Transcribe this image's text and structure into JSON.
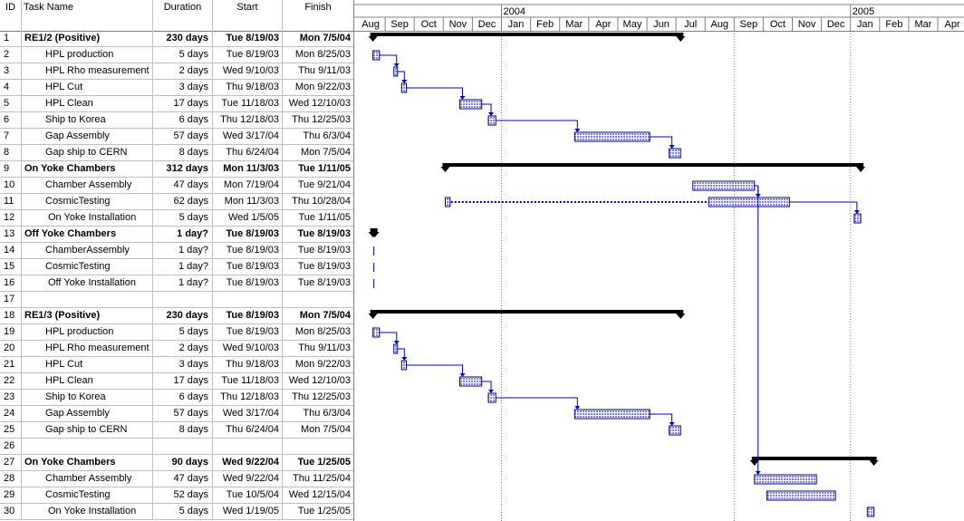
{
  "columns": {
    "id": "ID",
    "task_name": "Task Name",
    "duration": "Duration",
    "start": "Start",
    "finish": "Finish"
  },
  "timeline": {
    "years": [
      "2004",
      "2005"
    ],
    "months": [
      "Aug",
      "Sep",
      "Oct",
      "Nov",
      "Dec",
      "Jan",
      "Feb",
      "Mar",
      "Apr",
      "May",
      "Jun",
      "Jul",
      "Aug",
      "Sep",
      "Oct",
      "Nov",
      "Dec",
      "Jan",
      "Feb",
      "Mar",
      "Apr"
    ],
    "month_starts": [
      "2003-08-01",
      "2003-09-01",
      "2003-10-01",
      "2003-11-01",
      "2003-12-01",
      "2004-01-01",
      "2004-02-01",
      "2004-03-01",
      "2004-04-01",
      "2004-05-01",
      "2004-06-01",
      "2004-07-01",
      "2004-08-01",
      "2004-09-01",
      "2004-10-01",
      "2004-11-01",
      "2004-12-01",
      "2005-01-01",
      "2005-02-01",
      "2005-03-01",
      "2005-04-01"
    ]
  },
  "colors": {
    "bar_fill": "#7f7fff",
    "bar_border": "#00007f",
    "summary": "#000000",
    "link": "#0000cc"
  },
  "tasks": [
    {
      "id": "1",
      "name": "RE1/2 (Positive)",
      "duration": "230 days",
      "start": "Tue 8/19/03",
      "finish": "Mon 7/5/04",
      "summary": true,
      "indent": 0,
      "s": "2003-08-19",
      "f": "2004-07-05"
    },
    {
      "id": "2",
      "name": "HPL production",
      "duration": "5 days",
      "start": "Tue 8/19/03",
      "finish": "Mon 8/25/03",
      "summary": false,
      "indent": 1,
      "s": "2003-08-19",
      "f": "2003-08-25"
    },
    {
      "id": "3",
      "name": "HPL Rho  measurement",
      "duration": "2 days",
      "start": "Wed 9/10/03",
      "finish": "Thu 9/11/03",
      "summary": false,
      "indent": 1,
      "s": "2003-09-10",
      "f": "2003-09-11"
    },
    {
      "id": "4",
      "name": "HPL Cut",
      "duration": "3 days",
      "start": "Thu 9/18/03",
      "finish": "Mon 9/22/03",
      "summary": false,
      "indent": 1,
      "s": "2003-09-18",
      "f": "2003-09-22"
    },
    {
      "id": "5",
      "name": "HPL Clean",
      "duration": "17 days",
      "start": "Tue 11/18/03",
      "finish": "Wed 12/10/03",
      "summary": false,
      "indent": 1,
      "s": "2003-11-18",
      "f": "2003-12-10"
    },
    {
      "id": "6",
      "name": "Ship to Korea",
      "duration": "6 days",
      "start": "Thu 12/18/03",
      "finish": "Thu 12/25/03",
      "summary": false,
      "indent": 1,
      "s": "2003-12-18",
      "f": "2003-12-25"
    },
    {
      "id": "7",
      "name": "Gap Assembly",
      "duration": "57 days",
      "start": "Wed 3/17/04",
      "finish": "Thu 6/3/04",
      "summary": false,
      "indent": 1,
      "s": "2004-03-17",
      "f": "2004-06-03"
    },
    {
      "id": "8",
      "name": "Gap ship to CERN",
      "duration": "8 days",
      "start": "Thu 6/24/04",
      "finish": "Mon 7/5/04",
      "summary": false,
      "indent": 1,
      "s": "2004-06-24",
      "f": "2004-07-05"
    },
    {
      "id": "9",
      "name": "On Yoke Chambers",
      "duration": "312 days",
      "start": "Mon 11/3/03",
      "finish": "Tue 1/11/05",
      "summary": true,
      "indent": 0,
      "s": "2003-11-03",
      "f": "2005-01-11"
    },
    {
      "id": "10",
      "name": "Chamber Assembly",
      "duration": "47 days",
      "start": "Mon 7/19/04",
      "finish": "Tue 9/21/04",
      "summary": false,
      "indent": 1,
      "s": "2004-07-19",
      "f": "2004-09-21"
    },
    {
      "id": "11",
      "name": "CosmicTesting",
      "duration": "62 days",
      "start": "Mon 11/3/03",
      "finish": "Thu 10/28/04",
      "summary": false,
      "indent": 1,
      "s": "2003-11-03",
      "f": "2004-10-28",
      "split": [
        "2003-11-08",
        "2004-08-05"
      ]
    },
    {
      "id": "12",
      "name": "On Yoke Installation",
      "duration": "5 days",
      "start": "Wed 1/5/05",
      "finish": "Tue 1/11/05",
      "summary": false,
      "indent": 2,
      "s": "2005-01-05",
      "f": "2005-01-11"
    },
    {
      "id": "13",
      "name": "Off Yoke Chambers",
      "duration": "1 day?",
      "start": "Tue 8/19/03",
      "finish": "Tue 8/19/03",
      "summary": true,
      "indent": 0,
      "s": "2003-08-19",
      "f": "2003-08-19"
    },
    {
      "id": "14",
      "name": "ChamberAssembly",
      "duration": "1 day?",
      "start": "Tue 8/19/03",
      "finish": "Tue 8/19/03",
      "summary": false,
      "indent": 1,
      "s": "2003-08-19",
      "f": "2003-08-19"
    },
    {
      "id": "15",
      "name": "CosmicTesting",
      "duration": "1 day?",
      "start": "Tue 8/19/03",
      "finish": "Tue 8/19/03",
      "summary": false,
      "indent": 1,
      "s": "2003-08-19",
      "f": "2003-08-19"
    },
    {
      "id": "16",
      "name": "Off Yoke Installation",
      "duration": "1 day?",
      "start": "Tue 8/19/03",
      "finish": "Tue 8/19/03",
      "summary": false,
      "indent": 2,
      "s": "2003-08-19",
      "f": "2003-08-19"
    },
    {
      "id": "17",
      "name": "",
      "duration": "",
      "start": "",
      "finish": "",
      "summary": false,
      "indent": 0,
      "empty": true
    },
    {
      "id": "18",
      "name": "RE1/3 (Positive)",
      "duration": "230 days",
      "start": "Tue 8/19/03",
      "finish": "Mon 7/5/04",
      "summary": true,
      "indent": 0,
      "s": "2003-08-19",
      "f": "2004-07-05"
    },
    {
      "id": "19",
      "name": "HPL production",
      "duration": "5 days",
      "start": "Tue 8/19/03",
      "finish": "Mon 8/25/03",
      "summary": false,
      "indent": 1,
      "s": "2003-08-19",
      "f": "2003-08-25"
    },
    {
      "id": "20",
      "name": "HPL Rho  measurement",
      "duration": "2 days",
      "start": "Wed 9/10/03",
      "finish": "Thu 9/11/03",
      "summary": false,
      "indent": 1,
      "s": "2003-09-10",
      "f": "2003-09-11"
    },
    {
      "id": "21",
      "name": "HPL Cut",
      "duration": "3 days",
      "start": "Thu 9/18/03",
      "finish": "Mon 9/22/03",
      "summary": false,
      "indent": 1,
      "s": "2003-09-18",
      "f": "2003-09-22"
    },
    {
      "id": "22",
      "name": "HPL Clean",
      "duration": "17 days",
      "start": "Tue 11/18/03",
      "finish": "Wed 12/10/03",
      "summary": false,
      "indent": 1,
      "s": "2003-11-18",
      "f": "2003-12-10"
    },
    {
      "id": "23",
      "name": "Ship to Korea",
      "duration": "6 days",
      "start": "Thu 12/18/03",
      "finish": "Thu 12/25/03",
      "summary": false,
      "indent": 1,
      "s": "2003-12-18",
      "f": "2003-12-25"
    },
    {
      "id": "24",
      "name": "Gap Assembly",
      "duration": "57 days",
      "start": "Wed 3/17/04",
      "finish": "Thu 6/3/04",
      "summary": false,
      "indent": 1,
      "s": "2004-03-17",
      "f": "2004-06-03"
    },
    {
      "id": "25",
      "name": "Gap ship to CERN",
      "duration": "8 days",
      "start": "Thu 6/24/04",
      "finish": "Mon 7/5/04",
      "summary": false,
      "indent": 1,
      "s": "2004-06-24",
      "f": "2004-07-05"
    },
    {
      "id": "26",
      "name": "",
      "duration": "",
      "start": "",
      "finish": "",
      "summary": false,
      "indent": 0,
      "empty": true
    },
    {
      "id": "27",
      "name": "On Yoke Chambers",
      "duration": "90 days",
      "start": "Wed 9/22/04",
      "finish": "Tue 1/25/05",
      "summary": true,
      "indent": 0,
      "s": "2004-09-22",
      "f": "2005-01-25"
    },
    {
      "id": "28",
      "name": "Chamber Assembly",
      "duration": "47 days",
      "start": "Wed 9/22/04",
      "finish": "Thu 11/25/04",
      "summary": false,
      "indent": 1,
      "s": "2004-09-22",
      "f": "2004-11-25"
    },
    {
      "id": "29",
      "name": "CosmicTesting",
      "duration": "52 days",
      "start": "Tue 10/5/04",
      "finish": "Wed 12/15/04",
      "summary": false,
      "indent": 1,
      "s": "2004-10-05",
      "f": "2004-12-15"
    },
    {
      "id": "30",
      "name": "On Yoke Installation",
      "duration": "5 days",
      "start": "Wed 1/19/05",
      "finish": "Tue 1/25/05",
      "summary": false,
      "indent": 2,
      "s": "2005-01-19",
      "f": "2005-01-25"
    }
  ],
  "links": [
    [
      "2",
      "3"
    ],
    [
      "3",
      "4"
    ],
    [
      "4",
      "5"
    ],
    [
      "5",
      "6"
    ],
    [
      "6",
      "7"
    ],
    [
      "7",
      "8"
    ],
    [
      "10",
      "11"
    ],
    [
      "11",
      "12"
    ],
    [
      "10",
      "28"
    ],
    [
      "19",
      "20"
    ],
    [
      "20",
      "21"
    ],
    [
      "21",
      "22"
    ],
    [
      "22",
      "23"
    ],
    [
      "23",
      "24"
    ],
    [
      "24",
      "25"
    ]
  ]
}
